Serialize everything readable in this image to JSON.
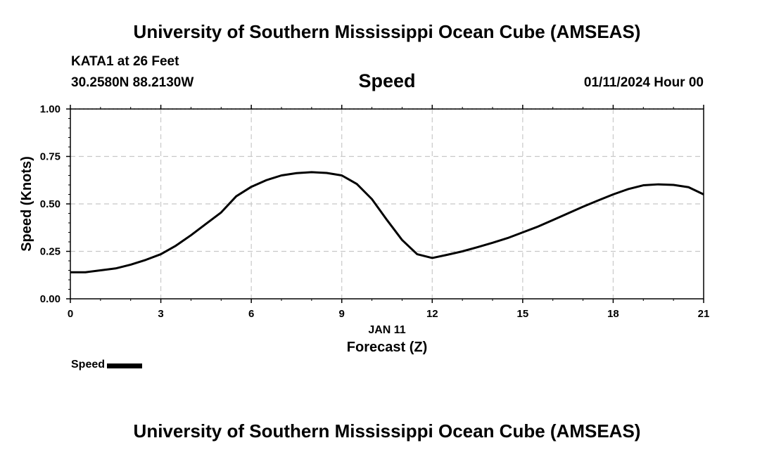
{
  "header": {
    "title": "University of Southern Mississippi Ocean Cube (AMSEAS)",
    "station": "KATA1 at 26 Feet",
    "coordinates": "30.2580N  88.2130W",
    "parameter": "Speed",
    "datetime": "01/11/2024 Hour 00"
  },
  "footer": {
    "title": "University of Southern Mississippi Ocean Cube (AMSEAS)"
  },
  "legend": {
    "label": "Speed",
    "color": "#000000"
  },
  "chart_data": {
    "type": "line",
    "title": "Speed",
    "xlabel": "Forecast (Z)",
    "xlabel_date": "JAN 11",
    "ylabel": "Speed (Knots)",
    "xlim": [
      0,
      21
    ],
    "ylim": [
      0,
      1
    ],
    "xticks": [
      0,
      3,
      6,
      9,
      12,
      15,
      18,
      21
    ],
    "xtick_labels": [
      "0",
      "3",
      "6",
      "9",
      "12",
      "15",
      "18",
      "21"
    ],
    "yticks": [
      0,
      0.25,
      0.5,
      0.75,
      1.0
    ],
    "ytick_labels": [
      "0.00",
      "0.25",
      "0.50",
      "0.75",
      "1.00"
    ],
    "grid": true,
    "series": [
      {
        "name": "Speed",
        "color": "#000000",
        "x": [
          0,
          0.5,
          1,
          1.5,
          2,
          2.5,
          3,
          3.5,
          4,
          4.5,
          5,
          5.5,
          6,
          6.5,
          7,
          7.5,
          8,
          8.5,
          9,
          9.5,
          10,
          10.5,
          11,
          11.5,
          12,
          12.5,
          13,
          13.5,
          14,
          14.5,
          15,
          15.5,
          16,
          16.5,
          17,
          17.5,
          18,
          18.5,
          19,
          19.5,
          20,
          20.5,
          21
        ],
        "values": [
          0.14,
          0.14,
          0.15,
          0.16,
          0.18,
          0.205,
          0.235,
          0.28,
          0.335,
          0.395,
          0.455,
          0.54,
          0.59,
          0.625,
          0.65,
          0.662,
          0.667,
          0.663,
          0.65,
          0.605,
          0.525,
          0.415,
          0.31,
          0.235,
          0.215,
          0.232,
          0.25,
          0.272,
          0.295,
          0.32,
          0.35,
          0.38,
          0.415,
          0.45,
          0.485,
          0.518,
          0.55,
          0.578,
          0.598,
          0.603,
          0.6,
          0.588,
          0.55
        ]
      }
    ]
  }
}
